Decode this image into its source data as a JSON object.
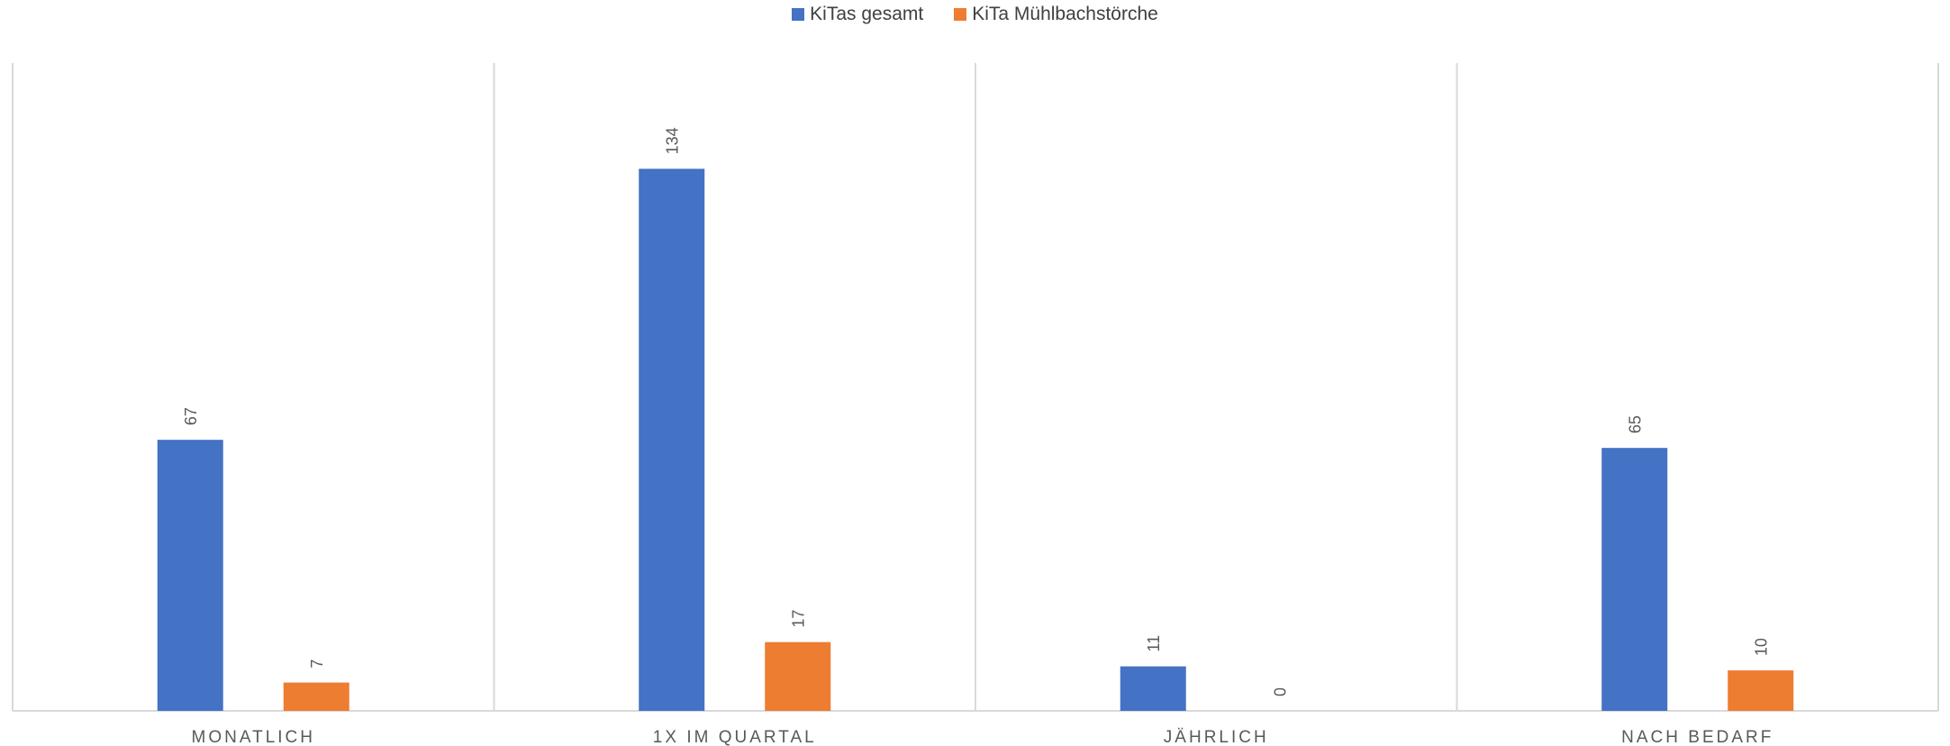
{
  "chart_data": {
    "type": "bar",
    "categories": [
      "MONATLICH",
      "1X IM QUARTAL",
      "JÄHRLICH",
      "NACH BEDARF"
    ],
    "series": [
      {
        "name": "KiTas gesamt",
        "values": [
          67,
          134,
          11,
          65
        ],
        "color": "#4472C4"
      },
      {
        "name": "KiTa Mühlbachstörche",
        "values": [
          7,
          17,
          0,
          10
        ],
        "color": "#ED7D31"
      }
    ],
    "ylim": [
      0,
      160
    ],
    "legend_position": "top-center",
    "grid": "vertical category separators",
    "data_labels": true
  }
}
